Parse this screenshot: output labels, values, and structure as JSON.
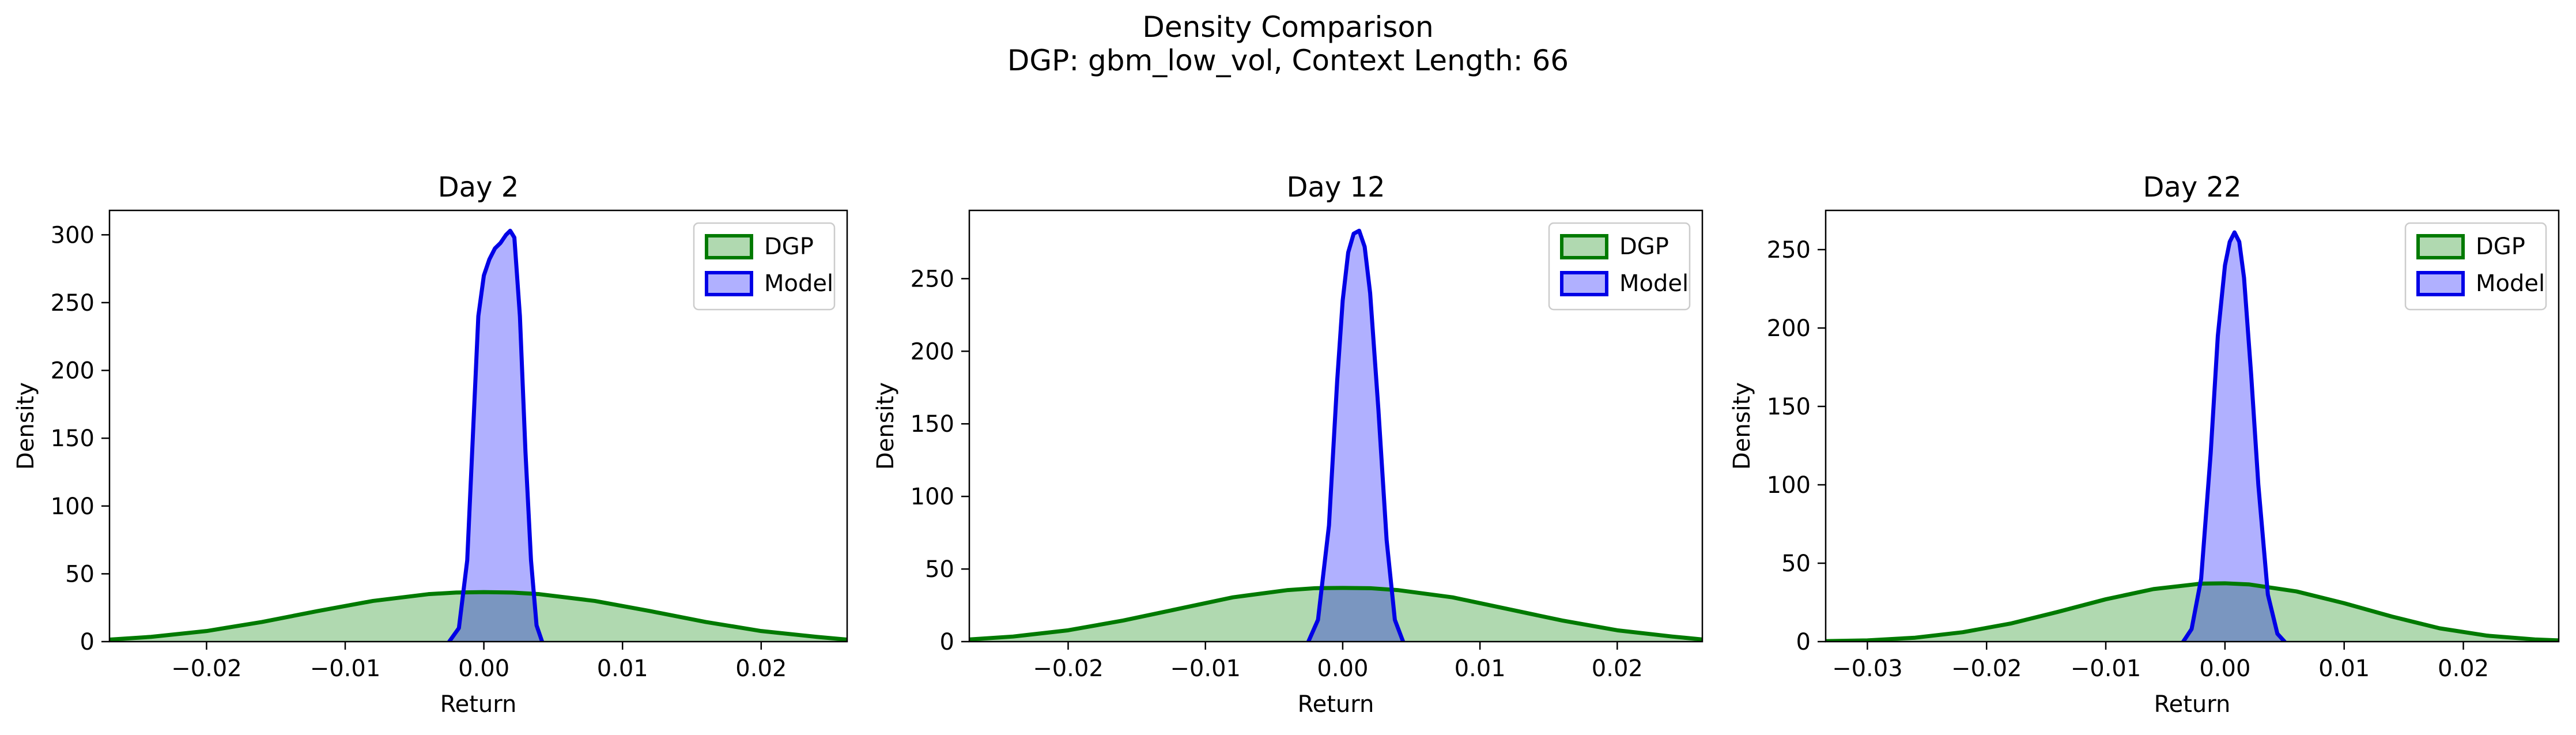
{
  "figure": {
    "title": "Density Comparison",
    "subtitle": "DGP: gbm_low_vol, Context Length: 66"
  },
  "colors": {
    "dgp_line": "#007a00",
    "dgp_fill": "#b0d9b0",
    "model_line": "#0000e6",
    "model_fill": "#b0b0ff",
    "overlap_fill": "#7a96c0"
  },
  "chart_data": [
    {
      "type": "area",
      "title": "Day 2",
      "xlabel": "Return",
      "ylabel": "Density",
      "xlim": [
        -0.027,
        0.0262
      ],
      "ylim": [
        0,
        318
      ],
      "xticks": [
        -0.02,
        -0.01,
        0.0,
        0.01,
        0.02
      ],
      "xtick_labels": [
        "−0.02",
        "−0.01",
        "0.00",
        "0.01",
        "0.02"
      ],
      "yticks": [
        0,
        50,
        100,
        150,
        200,
        250,
        300
      ],
      "ytick_labels": [
        "0",
        "50",
        "100",
        "150",
        "200",
        "250",
        "300"
      ],
      "grid": false,
      "legend": "top-right",
      "series": [
        {
          "name": "DGP",
          "x": [
            -0.027,
            -0.024,
            -0.02,
            -0.016,
            -0.012,
            -0.008,
            -0.004,
            -0.002,
            0.0,
            0.002,
            0.004,
            0.008,
            0.012,
            0.016,
            0.02,
            0.024,
            0.0262
          ],
          "y": [
            1.5,
            3.5,
            7.8,
            14.5,
            22.5,
            30.0,
            35.0,
            36.2,
            36.5,
            36.2,
            35.0,
            30.0,
            22.5,
            14.5,
            7.8,
            3.5,
            1.5
          ]
        },
        {
          "name": "Model",
          "x": [
            -0.0025,
            -0.0018,
            -0.0012,
            -0.0008,
            -0.0004,
            0.0,
            0.0004,
            0.0008,
            0.0012,
            0.0016,
            0.0019,
            0.0022,
            0.0026,
            0.003,
            0.0034,
            0.0038,
            0.0042
          ],
          "y": [
            0,
            10,
            60,
            150,
            240,
            270,
            282,
            290,
            294,
            300,
            303,
            298,
            240,
            140,
            60,
            12,
            0
          ]
        }
      ]
    },
    {
      "type": "area",
      "title": "Day 12",
      "xlabel": "Return",
      "ylabel": "Density",
      "xlim": [
        -0.0272,
        0.0262
      ],
      "ylim": [
        0,
        297
      ],
      "xticks": [
        -0.02,
        -0.01,
        0.0,
        0.01,
        0.02
      ],
      "xtick_labels": [
        "−0.02",
        "−0.01",
        "0.00",
        "0.01",
        "0.02"
      ],
      "yticks": [
        0,
        50,
        100,
        150,
        200,
        250
      ],
      "ytick_labels": [
        "0",
        "50",
        "100",
        "150",
        "200",
        "250"
      ],
      "grid": false,
      "legend": "top-right",
      "series": [
        {
          "name": "DGP",
          "x": [
            -0.0272,
            -0.024,
            -0.02,
            -0.016,
            -0.012,
            -0.008,
            -0.004,
            -0.002,
            0.0,
            0.002,
            0.004,
            0.008,
            0.012,
            0.016,
            0.02,
            0.024,
            0.0262
          ],
          "y": [
            1.5,
            3.5,
            7.8,
            14.5,
            22.5,
            30.5,
            35.5,
            36.8,
            37.0,
            36.8,
            35.5,
            30.5,
            22.5,
            14.5,
            7.8,
            3.5,
            1.5
          ]
        },
        {
          "name": "Model",
          "x": [
            -0.0025,
            -0.0018,
            -0.001,
            -0.0004,
            0.0,
            0.0004,
            0.0008,
            0.0012,
            0.0016,
            0.002,
            0.0026,
            0.0032,
            0.0038,
            0.0044
          ],
          "y": [
            0,
            15,
            80,
            180,
            235,
            268,
            281,
            283,
            272,
            240,
            160,
            70,
            15,
            0
          ]
        }
      ]
    },
    {
      "type": "area",
      "title": "Day 22",
      "xlabel": "Return",
      "ylabel": "Density",
      "xlim": [
        -0.0335,
        0.028
      ],
      "ylim": [
        0,
        275
      ],
      "xticks": [
        -0.03,
        -0.02,
        -0.01,
        0.0,
        0.01,
        0.02
      ],
      "xtick_labels": [
        "−0.03",
        "−0.02",
        "−0.01",
        "0.00",
        "0.01",
        "0.02"
      ],
      "yticks": [
        0,
        50,
        100,
        150,
        200,
        250
      ],
      "ytick_labels": [
        "0",
        "50",
        "100",
        "150",
        "200",
        "250"
      ],
      "grid": false,
      "legend": "top-right",
      "series": [
        {
          "name": "DGP",
          "x": [
            -0.0335,
            -0.03,
            -0.026,
            -0.022,
            -0.018,
            -0.014,
            -0.01,
            -0.006,
            -0.002,
            0.0,
            0.002,
            0.006,
            0.01,
            0.014,
            0.018,
            0.022,
            0.026,
            0.028
          ],
          "y": [
            0.3,
            0.8,
            2.5,
            6.0,
            11.5,
            19.0,
            27.0,
            33.5,
            37.0,
            37.2,
            36.5,
            32.0,
            24.5,
            16.0,
            8.5,
            3.8,
            1.4,
            0.8
          ]
        },
        {
          "name": "Model",
          "x": [
            -0.0035,
            -0.0028,
            -0.002,
            -0.0012,
            -0.0006,
            0.0,
            0.0004,
            0.0008,
            0.0012,
            0.0016,
            0.0022,
            0.0028,
            0.0036,
            0.0044,
            0.005
          ],
          "y": [
            0,
            8,
            40,
            120,
            195,
            240,
            255,
            261,
            255,
            232,
            170,
            100,
            30,
            5,
            0
          ]
        }
      ]
    }
  ]
}
